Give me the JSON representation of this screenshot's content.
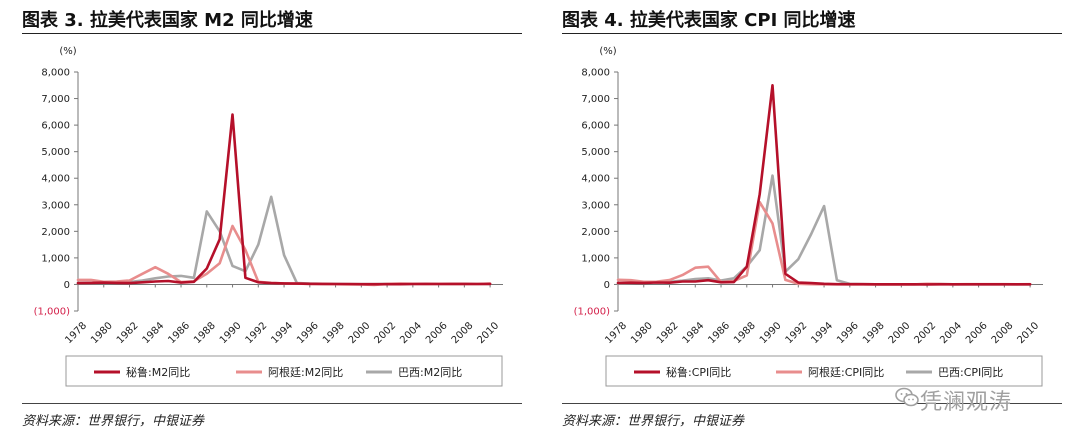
{
  "panels": [
    {
      "title": "图表 3. 拉美代表国家 M2 同比增速",
      "source": "资料来源：世界银行，中银证券"
    },
    {
      "title": "图表 4. 拉美代表国家 CPI 同比增速",
      "source": "资料来源：世界银行，中银证券"
    }
  ],
  "watermark": "凭澜观涛",
  "chart_data": [
    {
      "type": "line",
      "ylabel": "(%)",
      "ylim": [
        -1000,
        8000
      ],
      "yticks": [
        8000,
        7000,
        6000,
        5000,
        4000,
        3000,
        2000,
        1000,
        0,
        -1000
      ],
      "ytick_labels": [
        "8,000",
        "7,000",
        "6,000",
        "5,000",
        "4,000",
        "3,000",
        "2,000",
        "1,000",
        "0",
        "(1,000)"
      ],
      "xticks": [
        1978,
        1980,
        1982,
        1984,
        1986,
        1988,
        1990,
        1992,
        1994,
        1996,
        1998,
        2000,
        2002,
        2004,
        2006,
        2008,
        2010
      ],
      "xlim": [
        1978,
        2011
      ],
      "legend_position": "bottom",
      "series": [
        {
          "name": "秘鲁:M2同比",
          "color": "#b5102a",
          "points": [
            [
              1978,
              50
            ],
            [
              1979,
              60
            ],
            [
              1980,
              70
            ],
            [
              1981,
              60
            ],
            [
              1982,
              50
            ],
            [
              1983,
              80
            ],
            [
              1984,
              110
            ],
            [
              1985,
              130
            ],
            [
              1986,
              70
            ],
            [
              1987,
              100
            ],
            [
              1988,
              600
            ],
            [
              1989,
              1700
            ],
            [
              1990,
              6400
            ],
            [
              1991,
              250
            ],
            [
              1992,
              80
            ],
            [
              1993,
              50
            ],
            [
              1994,
              40
            ],
            [
              1995,
              30
            ],
            [
              1996,
              25
            ],
            [
              1997,
              20
            ],
            [
              1998,
              15
            ],
            [
              1999,
              15
            ],
            [
              2000,
              10
            ],
            [
              2001,
              10
            ],
            [
              2002,
              10
            ],
            [
              2003,
              10
            ],
            [
              2004,
              15
            ],
            [
              2005,
              20
            ],
            [
              2006,
              15
            ],
            [
              2007,
              20
            ],
            [
              2008,
              20
            ],
            [
              2009,
              15
            ],
            [
              2010,
              20
            ]
          ]
        },
        {
          "name": "阿根廷:M2同比",
          "color": "#e88d8d",
          "points": [
            [
              1978,
              170
            ],
            [
              1979,
              170
            ],
            [
              1980,
              100
            ],
            [
              1981,
              110
            ],
            [
              1982,
              150
            ],
            [
              1983,
              400
            ],
            [
              1984,
              650
            ],
            [
              1985,
              400
            ],
            [
              1986,
              90
            ],
            [
              1987,
              120
            ],
            [
              1988,
              400
            ],
            [
              1989,
              800
            ],
            [
              1990,
              2200
            ],
            [
              1991,
              1300
            ],
            [
              1992,
              100
            ],
            [
              1993,
              60
            ],
            [
              1994,
              40
            ],
            [
              1995,
              30
            ],
            [
              1996,
              20
            ],
            [
              1997,
              20
            ],
            [
              1998,
              10
            ],
            [
              1999,
              0
            ],
            [
              2000,
              0
            ],
            [
              2001,
              -20
            ],
            [
              2002,
              20
            ],
            [
              2003,
              30
            ],
            [
              2004,
              25
            ],
            [
              2005,
              20
            ],
            [
              2006,
              25
            ],
            [
              2007,
              20
            ],
            [
              2008,
              20
            ],
            [
              2009,
              15
            ],
            [
              2010,
              30
            ]
          ]
        },
        {
          "name": "巴西:M2同比",
          "color": "#a8a8a8",
          "points": [
            [
              1978,
              50
            ],
            [
              1979,
              60
            ],
            [
              1980,
              70
            ],
            [
              1981,
              80
            ],
            [
              1982,
              90
            ],
            [
              1983,
              150
            ],
            [
              1984,
              230
            ],
            [
              1985,
              300
            ],
            [
              1986,
              320
            ],
            [
              1987,
              250
            ],
            [
              1988,
              2750
            ],
            [
              1989,
              2000
            ],
            [
              1990,
              700
            ],
            [
              1991,
              500
            ],
            [
              1992,
              1500
            ],
            [
              1993,
              3300
            ],
            [
              1994,
              1100
            ],
            [
              1995,
              50
            ],
            [
              1996,
              30
            ],
            [
              1997,
              25
            ],
            [
              1998,
              20
            ],
            [
              1999,
              10
            ],
            [
              2000,
              10
            ],
            [
              2001,
              10
            ],
            [
              2002,
              20
            ],
            [
              2003,
              10
            ],
            [
              2004,
              15
            ],
            [
              2005,
              15
            ],
            [
              2006,
              15
            ],
            [
              2007,
              15
            ],
            [
              2008,
              15
            ],
            [
              2009,
              15
            ],
            [
              2010,
              15
            ]
          ]
        }
      ]
    },
    {
      "type": "line",
      "ylabel": "(%)",
      "ylim": [
        -1000,
        8000
      ],
      "yticks": [
        8000,
        7000,
        6000,
        5000,
        4000,
        3000,
        2000,
        1000,
        0,
        -1000
      ],
      "ytick_labels": [
        "8,000",
        "7,000",
        "6,000",
        "5,000",
        "4,000",
        "3,000",
        "2,000",
        "1,000",
        "0",
        "(1,000)"
      ],
      "xticks": [
        1978,
        1980,
        1982,
        1984,
        1986,
        1988,
        1990,
        1992,
        1994,
        1996,
        1998,
        2000,
        2002,
        2004,
        2006,
        2008,
        2010
      ],
      "xlim": [
        1978,
        2011
      ],
      "legend_position": "bottom",
      "series": [
        {
          "name": "秘鲁:CPI同比",
          "color": "#b5102a",
          "points": [
            [
              1978,
              60
            ],
            [
              1979,
              65
            ],
            [
              1980,
              60
            ],
            [
              1981,
              75
            ],
            [
              1982,
              65
            ],
            [
              1983,
              110
            ],
            [
              1984,
              110
            ],
            [
              1985,
              160
            ],
            [
              1986,
              80
            ],
            [
              1987,
              90
            ],
            [
              1988,
              670
            ],
            [
              1989,
              3400
            ],
            [
              1990,
              7500
            ],
            [
              1991,
              400
            ],
            [
              1992,
              70
            ],
            [
              1993,
              50
            ],
            [
              1994,
              25
            ],
            [
              1995,
              10
            ],
            [
              1996,
              10
            ],
            [
              1997,
              10
            ],
            [
              1998,
              5
            ],
            [
              1999,
              5
            ],
            [
              2000,
              5
            ],
            [
              2001,
              5
            ],
            [
              2002,
              0
            ],
            [
              2003,
              5
            ],
            [
              2004,
              5
            ],
            [
              2005,
              5
            ],
            [
              2006,
              5
            ],
            [
              2007,
              5
            ],
            [
              2008,
              5
            ],
            [
              2009,
              5
            ],
            [
              2010,
              5
            ]
          ]
        },
        {
          "name": "阿根廷:CPI同比",
          "color": "#e88d8d",
          "points": [
            [
              1978,
              175
            ],
            [
              1979,
              160
            ],
            [
              1980,
              100
            ],
            [
              1981,
              105
            ],
            [
              1982,
              165
            ],
            [
              1983,
              350
            ],
            [
              1984,
              630
            ],
            [
              1985,
              670
            ],
            [
              1986,
              90
            ],
            [
              1987,
              130
            ],
            [
              1988,
              340
            ],
            [
              1989,
              3100
            ],
            [
              1990,
              2300
            ],
            [
              1991,
              170
            ],
            [
              1992,
              25
            ],
            [
              1993,
              10
            ],
            [
              1994,
              5
            ],
            [
              1995,
              5
            ],
            [
              1996,
              0
            ],
            [
              1997,
              0
            ],
            [
              1998,
              0
            ],
            [
              1999,
              0
            ],
            [
              2000,
              0
            ],
            [
              2001,
              0
            ],
            [
              2002,
              25
            ],
            [
              2003,
              15
            ],
            [
              2004,
              5
            ],
            [
              2005,
              10
            ],
            [
              2006,
              10
            ],
            [
              2007,
              10
            ],
            [
              2008,
              10
            ],
            [
              2009,
              5
            ],
            [
              2010,
              10
            ]
          ]
        },
        {
          "name": "巴西:CPI同比",
          "color": "#a8a8a8",
          "points": [
            [
              1978,
              40
            ],
            [
              1979,
              55
            ],
            [
              1980,
              90
            ],
            [
              1981,
              100
            ],
            [
              1982,
              100
            ],
            [
              1983,
              140
            ],
            [
              1984,
              200
            ],
            [
              1985,
              230
            ],
            [
              1986,
              150
            ],
            [
              1987,
              230
            ],
            [
              1988,
              680
            ],
            [
              1989,
              1290
            ],
            [
              1990,
              4100
            ],
            [
              1991,
              480
            ],
            [
              1992,
              950
            ],
            [
              1993,
              1900
            ],
            [
              1994,
              2950
            ],
            [
              1995,
              160
            ],
            [
              1996,
              20
            ],
            [
              1997,
              10
            ],
            [
              1998,
              5
            ],
            [
              1999,
              5
            ],
            [
              2000,
              5
            ],
            [
              2001,
              5
            ],
            [
              2002,
              10
            ],
            [
              2003,
              15
            ],
            [
              2004,
              5
            ],
            [
              2005,
              5
            ],
            [
              2006,
              5
            ],
            [
              2007,
              5
            ],
            [
              2008,
              5
            ],
            [
              2009,
              5
            ],
            [
              2010,
              5
            ]
          ]
        }
      ]
    }
  ]
}
